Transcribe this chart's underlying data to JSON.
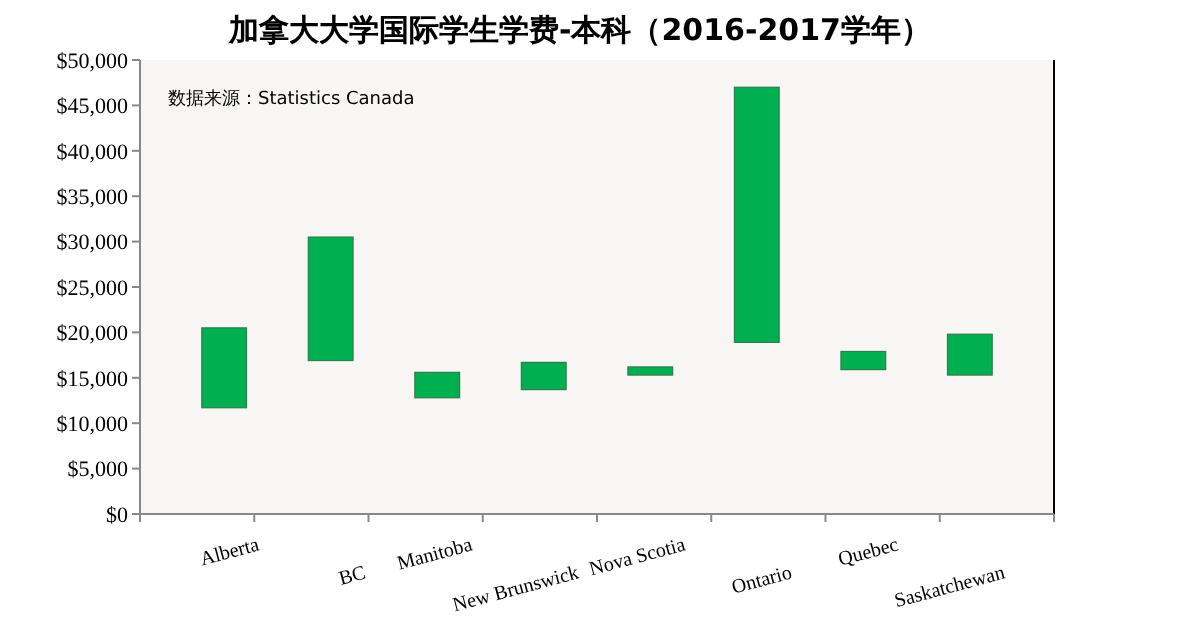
{
  "chart_data": {
    "type": "bar",
    "title": "加拿大大学国际学生学费-本科（2016-2017学年）",
    "categories": [
      "Alberta",
      "BC",
      "Manitoba",
      "New Brunswick",
      "Nova Scotia",
      "Ontario",
      "Quebec",
      "Saskatchewan"
    ],
    "base": [
      11700,
      16900,
      12800,
      13700,
      15300,
      18900,
      15900,
      15300
    ],
    "values": [
      8800,
      13600,
      2800,
      3000,
      900,
      28100,
      2000,
      4500
    ],
    "color": "#00b050",
    "ylim": [
      0,
      50000
    ],
    "yticks": [
      {
        "value": 0,
        "label": "$0"
      },
      {
        "value": 5000,
        "label": "$5,000"
      },
      {
        "value": 10000,
        "label": "$10,000"
      },
      {
        "value": 15000,
        "label": "$15,000"
      },
      {
        "value": 20000,
        "label": "$20,000"
      },
      {
        "value": 25000,
        "label": "$25,000"
      },
      {
        "value": 30000,
        "label": "$30,000"
      },
      {
        "value": 35000,
        "label": "$35,000"
      },
      {
        "value": 40000,
        "label": "$40,000"
      },
      {
        "value": 45000,
        "label": "$45,000"
      },
      {
        "value": 50000,
        "label": "$50,000"
      }
    ],
    "grid": false,
    "annotations": [
      "数据来源：Statistics Canada"
    ]
  }
}
